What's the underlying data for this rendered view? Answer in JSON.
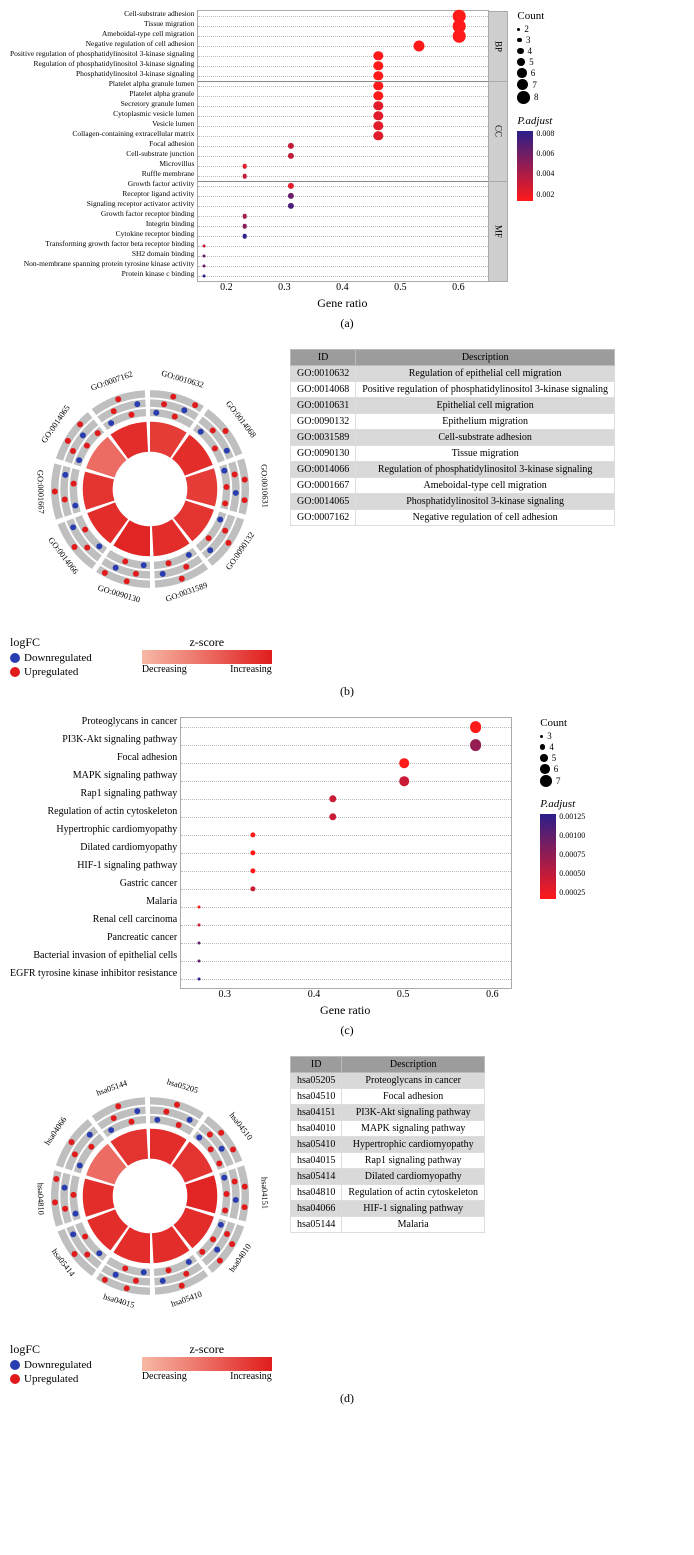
{
  "colors": {
    "upreg": "#e11b1b",
    "downreg": "#2a3db0",
    "facet_fill": "#cfcfcf",
    "padj_low": "#ff1a1a",
    "padj_high": "#2b1f8a",
    "zscore_low": "#f7b9a6",
    "zscore_high": "#e01d1d",
    "table_header": "#9c9c9c",
    "table_alt": "#d9d9d9"
  },
  "panel_a": {
    "x_title": "Gene ratio",
    "x_ticks": [
      0.2,
      0.3,
      0.4,
      0.5,
      0.6
    ],
    "xlim": [
      0.15,
      0.65
    ],
    "groups": [
      "BP",
      "CC",
      "MF"
    ],
    "count_legend": {
      "title": "Count",
      "values": [
        2,
        3,
        4,
        5,
        6,
        7,
        8
      ]
    },
    "padj_legend": {
      "title": "P.adjust",
      "ticks": [
        "0.008",
        "0.006",
        "0.004",
        "0.002"
      ]
    },
    "rows": [
      {
        "g": "BP",
        "label": "Cell-substrate adhesion",
        "x": 0.6,
        "count": 8,
        "padj": 0.001
      },
      {
        "g": "BP",
        "label": "Tissue migration",
        "x": 0.6,
        "count": 8,
        "padj": 0.001
      },
      {
        "g": "BP",
        "label": "Ameboidal-type cell migration",
        "x": 0.6,
        "count": 8,
        "padj": 0.001
      },
      {
        "g": "BP",
        "label": "Negative regulation of cell adhesion",
        "x": 0.53,
        "count": 7,
        "padj": 0.001
      },
      {
        "g": "BP",
        "label": "Positive regulation of phosphatidylinositol 3-kinase signaling",
        "x": 0.46,
        "count": 6,
        "padj": 0.001
      },
      {
        "g": "BP",
        "label": "Regulation of phosphatidylinositol 3-kinase signaling",
        "x": 0.46,
        "count": 6,
        "padj": 0.001
      },
      {
        "g": "BP",
        "label": "Phosphatidylinositol 3-kinase signaling",
        "x": 0.46,
        "count": 6,
        "padj": 0.001
      },
      {
        "g": "CC",
        "label": "Platelet alpha granule lumen",
        "x": 0.46,
        "count": 6,
        "padj": 0.001
      },
      {
        "g": "CC",
        "label": "Platelet alpha granule",
        "x": 0.46,
        "count": 6,
        "padj": 0.001
      },
      {
        "g": "CC",
        "label": "Secretory granule lumen",
        "x": 0.46,
        "count": 6,
        "padj": 0.002
      },
      {
        "g": "CC",
        "label": "Cytoplasmic vesicle lumen",
        "x": 0.46,
        "count": 6,
        "padj": 0.002
      },
      {
        "g": "CC",
        "label": "Vesicle lumen",
        "x": 0.46,
        "count": 6,
        "padj": 0.002
      },
      {
        "g": "CC",
        "label": "Collagen-containing extracellular matrix",
        "x": 0.46,
        "count": 6,
        "padj": 0.002
      },
      {
        "g": "CC",
        "label": "Focal adhesion",
        "x": 0.31,
        "count": 4,
        "padj": 0.003
      },
      {
        "g": "CC",
        "label": "Cell-substrate junction",
        "x": 0.31,
        "count": 4,
        "padj": 0.003
      },
      {
        "g": "CC",
        "label": "Microvillus",
        "x": 0.23,
        "count": 3,
        "padj": 0.002
      },
      {
        "g": "CC",
        "label": "Ruffle membrane",
        "x": 0.23,
        "count": 3,
        "padj": 0.003
      },
      {
        "g": "MF",
        "label": "Growth factor activity",
        "x": 0.31,
        "count": 4,
        "padj": 0.002
      },
      {
        "g": "MF",
        "label": "Receptor ligand activity",
        "x": 0.31,
        "count": 4,
        "padj": 0.006
      },
      {
        "g": "MF",
        "label": "Signaling receptor activator activity",
        "x": 0.31,
        "count": 4,
        "padj": 0.007
      },
      {
        "g": "MF",
        "label": "Growth factor receptor binding",
        "x": 0.23,
        "count": 3,
        "padj": 0.004
      },
      {
        "g": "MF",
        "label": "Integrin binding",
        "x": 0.23,
        "count": 3,
        "padj": 0.005
      },
      {
        "g": "MF",
        "label": "Cytokine receptor binding",
        "x": 0.23,
        "count": 3,
        "padj": 0.008
      },
      {
        "g": "MF",
        "label": "Transforming growth factor beta receptor binding",
        "x": 0.16,
        "count": 2,
        "padj": 0.003
      },
      {
        "g": "MF",
        "label": "SH2 domain binding",
        "x": 0.16,
        "count": 2,
        "padj": 0.006
      },
      {
        "g": "MF",
        "label": "Non-membrane spanning protein tyrosine kinase activity",
        "x": 0.16,
        "count": 2,
        "padj": 0.006
      },
      {
        "g": "MF",
        "label": "Protein kinase c binding",
        "x": 0.16,
        "count": 2,
        "padj": 0.008
      }
    ]
  },
  "panel_b": {
    "radial_ids": [
      "GO:0010632",
      "GO:0014068",
      "GO:0010631",
      "GO:0090132",
      "GO:0031589",
      "GO:0090130",
      "GO:0014066",
      "GO:0001667",
      "GO:0014065",
      "GO:0007162"
    ],
    "z_scores": [
      0.8,
      0.9,
      0.8,
      0.85,
      0.9,
      0.95,
      0.9,
      0.85,
      0.5,
      0.9
    ],
    "table": {
      "columns": [
        "ID",
        "Description"
      ],
      "rows": [
        [
          "GO:0010632",
          "Regulation of epithelial cell migration"
        ],
        [
          "GO:0014068",
          "Positive regulation of phosphatidylinositol 3-kinase signaling"
        ],
        [
          "GO:0010631",
          "Epithelial cell migration"
        ],
        [
          "GO:0090132",
          "Epithelium migration"
        ],
        [
          "GO:0031589",
          "Cell-substrate adhesion"
        ],
        [
          "GO:0090130",
          "Tissue migration"
        ],
        [
          "GO:0014066",
          "Regulation of phosphatidylinositol 3-kinase signaling"
        ],
        [
          "GO:0001667",
          "Ameboidal-type cell migration"
        ],
        [
          "GO:0014065",
          "Phosphatidylinositol 3-kinase signaling"
        ],
        [
          "GO:0007162",
          "Negative regulation of cell adhesion"
        ]
      ]
    },
    "logfc_title": "logFC",
    "down_label": "Downregulated",
    "up_label": "Upregulated",
    "zscore_title": "z-score",
    "dec_label": "Decreasing",
    "inc_label": "Increasing"
  },
  "panel_c": {
    "x_title": "Gene ratio",
    "x_ticks": [
      0.3,
      0.4,
      0.5,
      0.6
    ],
    "xlim": [
      0.25,
      0.62
    ],
    "count_legend": {
      "title": "Count",
      "values": [
        3,
        4,
        5,
        6,
        7
      ]
    },
    "padj_legend": {
      "title": "P.adjust",
      "ticks": [
        "0.00125",
        "0.00100",
        "0.00075",
        "0.00050",
        "0.00025"
      ]
    },
    "rows": [
      {
        "label": "Proteoglycans in cancer",
        "x": 0.58,
        "count": 7,
        "padj": 0.00025
      },
      {
        "label": "PI3K-Akt signaling pathway",
        "x": 0.58,
        "count": 7,
        "padj": 0.00075
      },
      {
        "label": "Focal adhesion",
        "x": 0.5,
        "count": 6,
        "padj": 0.00025
      },
      {
        "label": "MAPK signaling pathway",
        "x": 0.5,
        "count": 6,
        "padj": 0.0005
      },
      {
        "label": "Rap1 signaling pathway",
        "x": 0.42,
        "count": 5,
        "padj": 0.0005
      },
      {
        "label": "Regulation of actin cytoskeleton",
        "x": 0.42,
        "count": 5,
        "padj": 0.0005
      },
      {
        "label": "Hypertrophic cardiomyopathy",
        "x": 0.33,
        "count": 4,
        "padj": 0.00025
      },
      {
        "label": "Dilated cardiomyopathy",
        "x": 0.33,
        "count": 4,
        "padj": 0.00025
      },
      {
        "label": "HIF-1 signaling pathway",
        "x": 0.33,
        "count": 4,
        "padj": 0.00025
      },
      {
        "label": "Gastric cancer",
        "x": 0.33,
        "count": 4,
        "padj": 0.0005
      },
      {
        "label": "Malaria",
        "x": 0.27,
        "count": 3,
        "padj": 0.00025
      },
      {
        "label": "Renal cell carcinoma",
        "x": 0.27,
        "count": 3,
        "padj": 0.0005
      },
      {
        "label": "Pancreatic cancer",
        "x": 0.27,
        "count": 3,
        "padj": 0.001
      },
      {
        "label": "Bacterial invasion of epithelial cells",
        "x": 0.27,
        "count": 3,
        "padj": 0.001
      },
      {
        "label": "EGFR tyrosine kinase inhibitor resistance",
        "x": 0.27,
        "count": 3,
        "padj": 0.00125
      }
    ]
  },
  "panel_d": {
    "radial_ids": [
      "hsa05205",
      "hsa04510",
      "hsa04151",
      "hsa04010",
      "hsa05410",
      "hsa04015",
      "hsa05414",
      "hsa04810",
      "hsa04066",
      "hsa05144"
    ],
    "z_scores": [
      0.9,
      0.85,
      0.95,
      0.9,
      0.9,
      0.9,
      0.9,
      0.9,
      0.5,
      0.85
    ],
    "table": {
      "columns": [
        "ID",
        "Description"
      ],
      "rows": [
        [
          "hsa05205",
          "Proteoglycans in cancer"
        ],
        [
          "hsa04510",
          "Focal adhesion"
        ],
        [
          "hsa04151",
          "PI3K-Akt signaling pathway"
        ],
        [
          "hsa04010",
          "MAPK signaling pathway"
        ],
        [
          "hsa05410",
          "Hypertrophic cardiomyopathy"
        ],
        [
          "hsa04015",
          "Rap1 signaling pathway"
        ],
        [
          "hsa05414",
          "Dilated cardiomyopathy"
        ],
        [
          "hsa04810",
          "Regulation of actin cytoskeleton"
        ],
        [
          "hsa04066",
          "HIF-1 signaling pathway"
        ],
        [
          "hsa05144",
          "Malaria"
        ]
      ]
    },
    "logfc_title": "logFC",
    "down_label": "Downregulated",
    "up_label": "Upregulated",
    "zscore_title": "z-score",
    "dec_label": "Decreasing",
    "inc_label": "Increasing"
  },
  "captions": {
    "a": "(a)",
    "b": "(b)",
    "c": "(c)",
    "d": "(d)"
  }
}
